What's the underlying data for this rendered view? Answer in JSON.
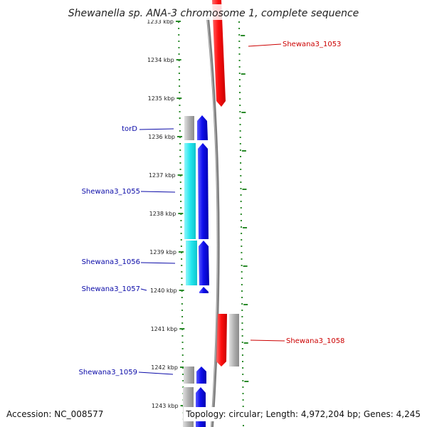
{
  "title": "Shewanella sp. ANA-3 chromosome 1, complete sequence",
  "footer": {
    "accession": "Accession: NC_008577",
    "summary": "Topology: circular; Length: 4,972,204 bp; Genes: 4,245"
  },
  "colors": {
    "backbone": "#7f7f7f",
    "tick": "#2a8a2a",
    "forward_label": "#0a0aa8",
    "reverse_label": "#cc0000",
    "gene_red": "#ff1a1a",
    "gene_blue": "#1010ee",
    "gene_cyan": "#20e0e8",
    "gene_gray": "#b4b4b4"
  },
  "axis": {
    "ticks": [
      "1233 kbp",
      "1234 kbp",
      "1235 kbp",
      "1236 kbp",
      "1237 kbp",
      "1238 kbp",
      "1239 kbp",
      "1240 kbp",
      "1241 kbp",
      "1242 kbp",
      "1243 kbp"
    ]
  },
  "genes": [
    {
      "name": "Shewana3_1053",
      "strand": "reverse",
      "color": "gene_red"
    },
    {
      "name": "torD",
      "strand": "forward",
      "color": "gene_blue"
    },
    {
      "name": "Shewana3_1055",
      "strand": "forward",
      "color": "gene_blue"
    },
    {
      "name": "Shewana3_1056",
      "strand": "forward",
      "color": "gene_blue"
    },
    {
      "name": "Shewana3_1057",
      "strand": "forward",
      "color": "gene_blue"
    },
    {
      "name": "Shewana3_1058",
      "strand": "reverse",
      "color": "gene_red"
    },
    {
      "name": "Shewana3_1059",
      "strand": "forward",
      "color": "gene_blue"
    }
  ]
}
